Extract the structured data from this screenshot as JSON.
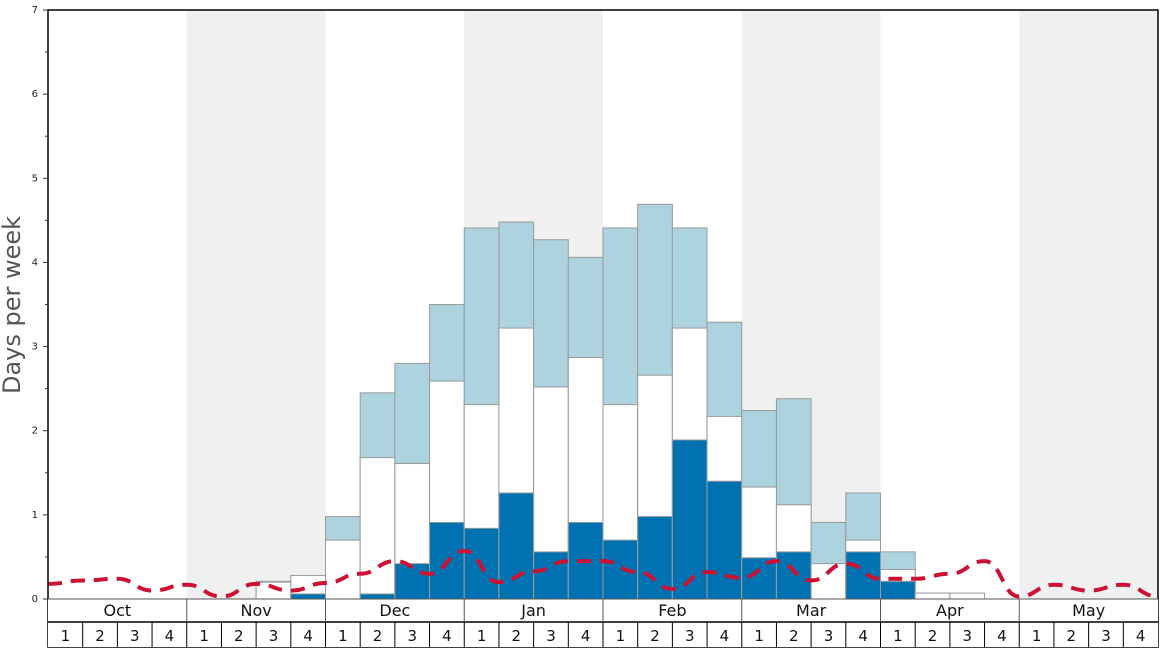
{
  "chart_data": {
    "type": "bar",
    "title": "",
    "xlabel": "",
    "ylabel": "Days per week",
    "ylim": [
      0,
      7
    ],
    "yticks": [
      "0",
      "1",
      "2",
      "3",
      "4",
      "5",
      "6",
      "7"
    ],
    "months": [
      "Oct",
      "Nov",
      "Dec",
      "Jan",
      "Feb",
      "Mar",
      "Apr",
      "May"
    ],
    "weeks": [
      "1",
      "2",
      "3",
      "4"
    ],
    "stacked_levels": {
      "dark": [
        0,
        0,
        0,
        0,
        0,
        0,
        0,
        0.06,
        0,
        0.06,
        0.42,
        0.91,
        0.84,
        1.26,
        0.56,
        0.91,
        0.7,
        0.98,
        1.89,
        1.4,
        0.49,
        0.56,
        0,
        0.56,
        0.21,
        0,
        0,
        0,
        0,
        0,
        0,
        0
      ],
      "white": [
        0,
        0,
        0,
        0,
        0,
        0,
        0.2,
        0.28,
        0.7,
        1.68,
        1.61,
        2.59,
        2.31,
        3.22,
        2.52,
        2.87,
        2.31,
        2.66,
        3.22,
        2.17,
        1.33,
        1.12,
        0.42,
        0.7,
        0.35,
        0.07,
        0.07,
        0,
        0,
        0,
        0,
        0
      ],
      "light": [
        0,
        0,
        0,
        0,
        0,
        0,
        0.21,
        0,
        0.98,
        2.45,
        2.8,
        3.5,
        4.41,
        4.48,
        4.27,
        4.06,
        4.41,
        4.69,
        4.41,
        3.29,
        2.24,
        2.38,
        0.91,
        1.26,
        0.56,
        0.07,
        0,
        0,
        0,
        0,
        0,
        0
      ]
    },
    "dashed_line": [
      0.18,
      0.22,
      0.24,
      0.1,
      0.17,
      0.03,
      0.18,
      0.1,
      0.19,
      0.3,
      0.45,
      0.3,
      0.57,
      0.2,
      0.33,
      0.45,
      0.45,
      0.32,
      0.12,
      0.32,
      0.25,
      0.45,
      0.22,
      0.42,
      0.24,
      0.24,
      0.3,
      0.45,
      0.03,
      0.17,
      0.1,
      0.17,
      0.03
    ],
    "colors": {
      "dark": "#0072b2",
      "white": "#ffffff",
      "light": "#add3df",
      "bar_stroke": "#9a9a9a",
      "dashed": "#cc1133",
      "band": "#f0f0f0"
    },
    "grid": false,
    "legend": "none"
  }
}
